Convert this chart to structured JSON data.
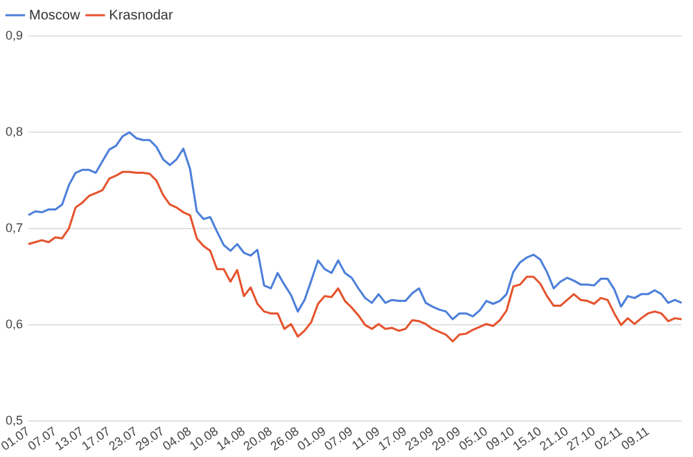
{
  "chart_data": {
    "type": "line",
    "categories": [
      "01.07",
      null,
      null,
      null,
      "07.07",
      null,
      null,
      null,
      "13.07",
      null,
      null,
      null,
      "17.07",
      null,
      null,
      null,
      "23.07",
      null,
      null,
      null,
      "29.07",
      null,
      null,
      null,
      "04.08",
      null,
      null,
      null,
      "10.08",
      null,
      null,
      null,
      "14.08",
      null,
      null,
      null,
      "20.08",
      null,
      null,
      null,
      "26.08",
      null,
      null,
      null,
      "01.09",
      null,
      null,
      null,
      "07.09",
      null,
      null,
      null,
      "11.09",
      null,
      null,
      null,
      "17.09",
      null,
      null,
      null,
      "23.09",
      null,
      null,
      null,
      "29.09",
      null,
      null,
      null,
      "05.10",
      null,
      null,
      null,
      "09.10",
      null,
      null,
      null,
      "15.10",
      null,
      null,
      null,
      "21.10",
      null,
      null,
      null,
      "27.10",
      null,
      null,
      null,
      "02.11",
      null,
      null,
      null,
      "09.11",
      null,
      null,
      null,
      null,
      null
    ],
    "series": [
      {
        "name": "Moscow",
        "color": "#4d7fd9",
        "values": [
          0.714,
          0.718,
          0.717,
          0.72,
          0.72,
          0.725,
          0.745,
          0.758,
          0.761,
          0.761,
          0.758,
          0.77,
          0.782,
          0.786,
          0.796,
          0.8,
          0.794,
          0.792,
          0.792,
          0.785,
          0.772,
          0.766,
          0.772,
          0.783,
          0.762,
          0.718,
          0.71,
          0.712,
          0.697,
          0.683,
          0.677,
          0.684,
          0.675,
          0.672,
          0.678,
          0.641,
          0.638,
          0.654,
          0.642,
          0.631,
          0.614,
          0.626,
          0.646,
          0.667,
          0.658,
          0.654,
          0.667,
          0.654,
          0.649,
          0.638,
          0.628,
          0.623,
          0.632,
          0.623,
          0.626,
          0.625,
          0.625,
          0.633,
          0.638,
          0.623,
          0.619,
          0.616,
          0.614,
          0.606,
          0.612,
          0.612,
          0.609,
          0.615,
          0.625,
          0.622,
          0.625,
          0.632,
          0.655,
          0.665,
          0.67,
          0.673,
          0.668,
          0.655,
          0.638,
          0.645,
          0.649,
          0.646,
          0.642,
          0.642,
          0.641,
          0.648,
          0.648,
          0.637,
          0.619,
          0.63,
          0.628,
          0.632,
          0.632,
          0.636,
          0.632,
          0.623,
          0.626,
          0.623
        ]
      },
      {
        "name": "Krasnodar",
        "color": "#e5532d",
        "values": [
          0.684,
          0.686,
          0.688,
          0.686,
          0.691,
          0.69,
          0.7,
          0.722,
          0.727,
          0.734,
          0.737,
          0.74,
          0.752,
          0.755,
          0.759,
          0.759,
          0.758,
          0.758,
          0.757,
          0.75,
          0.735,
          0.725,
          0.722,
          0.717,
          0.714,
          0.69,
          0.682,
          0.677,
          0.658,
          0.658,
          0.645,
          0.657,
          0.63,
          0.639,
          0.622,
          0.614,
          0.612,
          0.612,
          0.596,
          0.601,
          0.588,
          0.594,
          0.603,
          0.622,
          0.63,
          0.629,
          0.638,
          0.625,
          0.618,
          0.61,
          0.6,
          0.596,
          0.601,
          0.596,
          0.597,
          0.594,
          0.596,
          0.605,
          0.604,
          0.601,
          0.596,
          0.593,
          0.59,
          0.583,
          0.59,
          0.591,
          0.595,
          0.598,
          0.601,
          0.599,
          0.605,
          0.615,
          0.64,
          0.642,
          0.65,
          0.65,
          0.643,
          0.63,
          0.62,
          0.62,
          0.626,
          0.632,
          0.626,
          0.625,
          0.622,
          0.628,
          0.626,
          0.612,
          0.6,
          0.607,
          0.601,
          0.607,
          0.612,
          0.614,
          0.612,
          0.604,
          0.607,
          0.606
        ]
      }
    ],
    "ylim": [
      0.5,
      0.9
    ],
    "yticks": [
      {
        "value": 0.5,
        "label": "0,5"
      },
      {
        "value": 0.6,
        "label": "0,6"
      },
      {
        "value": 0.7,
        "label": "0,7"
      },
      {
        "value": 0.8,
        "label": "0,8"
      },
      {
        "value": 0.9,
        "label": "0,9"
      }
    ],
    "grid": "y",
    "legend": "top left",
    "marker": "none",
    "line_style": "solid"
  }
}
